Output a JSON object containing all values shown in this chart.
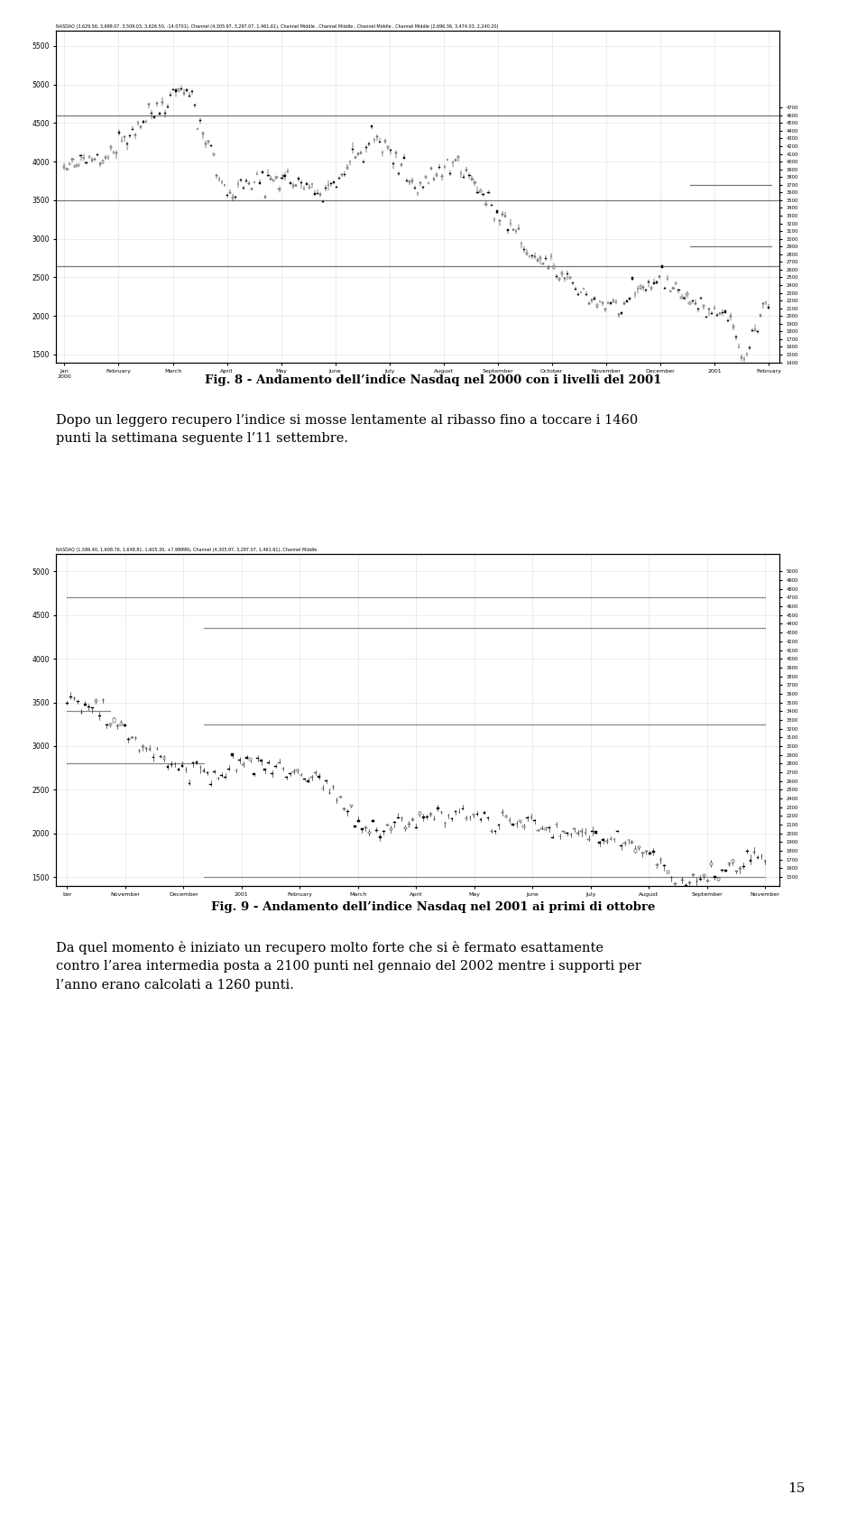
{
  "page_bg": "#ffffff",
  "fig8_title": "Fig. 8 - Andamento dell’indice Nasdaq nel 2000 con i livelli del 2001",
  "fig9_title": "Fig. 9 - Andamento dell’indice Nasdaq nel 2001 ai primi di ottobre",
  "text_para1_line1": "Dopo un leggero recupero l’indice si mosse lentamente al ribasso fino a toccare i 1460",
  "text_para1_line2": "punti la settimana seguente l’11 settembre.",
  "text_para2_line1": "Da quel momento è iniziato un recupero molto forte che si è fermato esattamente",
  "text_para2_line2": "contro l’area intermedia posta a 2100 punti nel gennaio del 2002 mentre i supporti per",
  "text_para2_line3": "l’anno erano calcolati a 1260 punti.",
  "page_number": "15",
  "chart_bg": "#ffffff",
  "chart_border": "#000000",
  "grid_color": "#dddddd",
  "fig8_ylim": [
    1400,
    5700
  ],
  "fig8_yticks_left": [
    1500,
    2000,
    2500,
    3000,
    3500,
    4000,
    4500,
    5000,
    5500
  ],
  "fig8_yticks_right": [
    1400,
    1500,
    1600,
    1700,
    1800,
    1900,
    2000,
    2100,
    2200,
    2300,
    2400,
    2500,
    2600,
    2700,
    2800,
    2900,
    3000,
    3100,
    3200,
    3300,
    3400,
    3500,
    3600,
    3700,
    3800,
    3900,
    4000,
    4100,
    4200,
    4300,
    4400,
    4500,
    4600,
    4700
  ],
  "fig8_xlabel_ticks": [
    "Jan\n2000",
    "February",
    "March",
    "April",
    "May",
    "June",
    "July",
    "August",
    "September",
    "October",
    "November",
    "December",
    "2001",
    "February"
  ],
  "fig9_ylim": [
    1400,
    5200
  ],
  "fig9_yticks_left": [
    1500,
    2000,
    2500,
    3000,
    3500,
    4000,
    4500,
    5000
  ],
  "fig9_yticks_right": [
    1500,
    1600,
    1700,
    1800,
    1900,
    2000,
    2100,
    2200,
    2300,
    2400,
    2500,
    2600,
    2700,
    2800,
    2900,
    3000,
    3100,
    3200,
    3300,
    3400,
    3500,
    3600,
    3700,
    3800,
    3900,
    4000,
    4100,
    4200,
    4300,
    4400,
    4500,
    4600,
    4700,
    4800,
    4900,
    5000
  ],
  "fig9_xlabel_ticks": [
    "ber",
    "November",
    "December",
    "2001",
    "February",
    "March",
    "April",
    "May",
    "June",
    "July",
    "August",
    "September",
    "November"
  ],
  "fig8_header": "NASDAQ (3,629.56, 3,699.07, 3,509.03, 3,626.50, -14.0701), Channel (4,305.97, 3,297.07, 1,461.61), Channel Middle , Channel Middle , Channel Middle , Channel Middle (2,696.36, 3,474.03, 2,240.20)",
  "fig9_header": "NASDAQ (1,586.40, 1,608.76, 1,648.81, 1,605.30, +7.98999), Channel (4,305.97, 3,297.07, 1,461.61), Channel Middle"
}
